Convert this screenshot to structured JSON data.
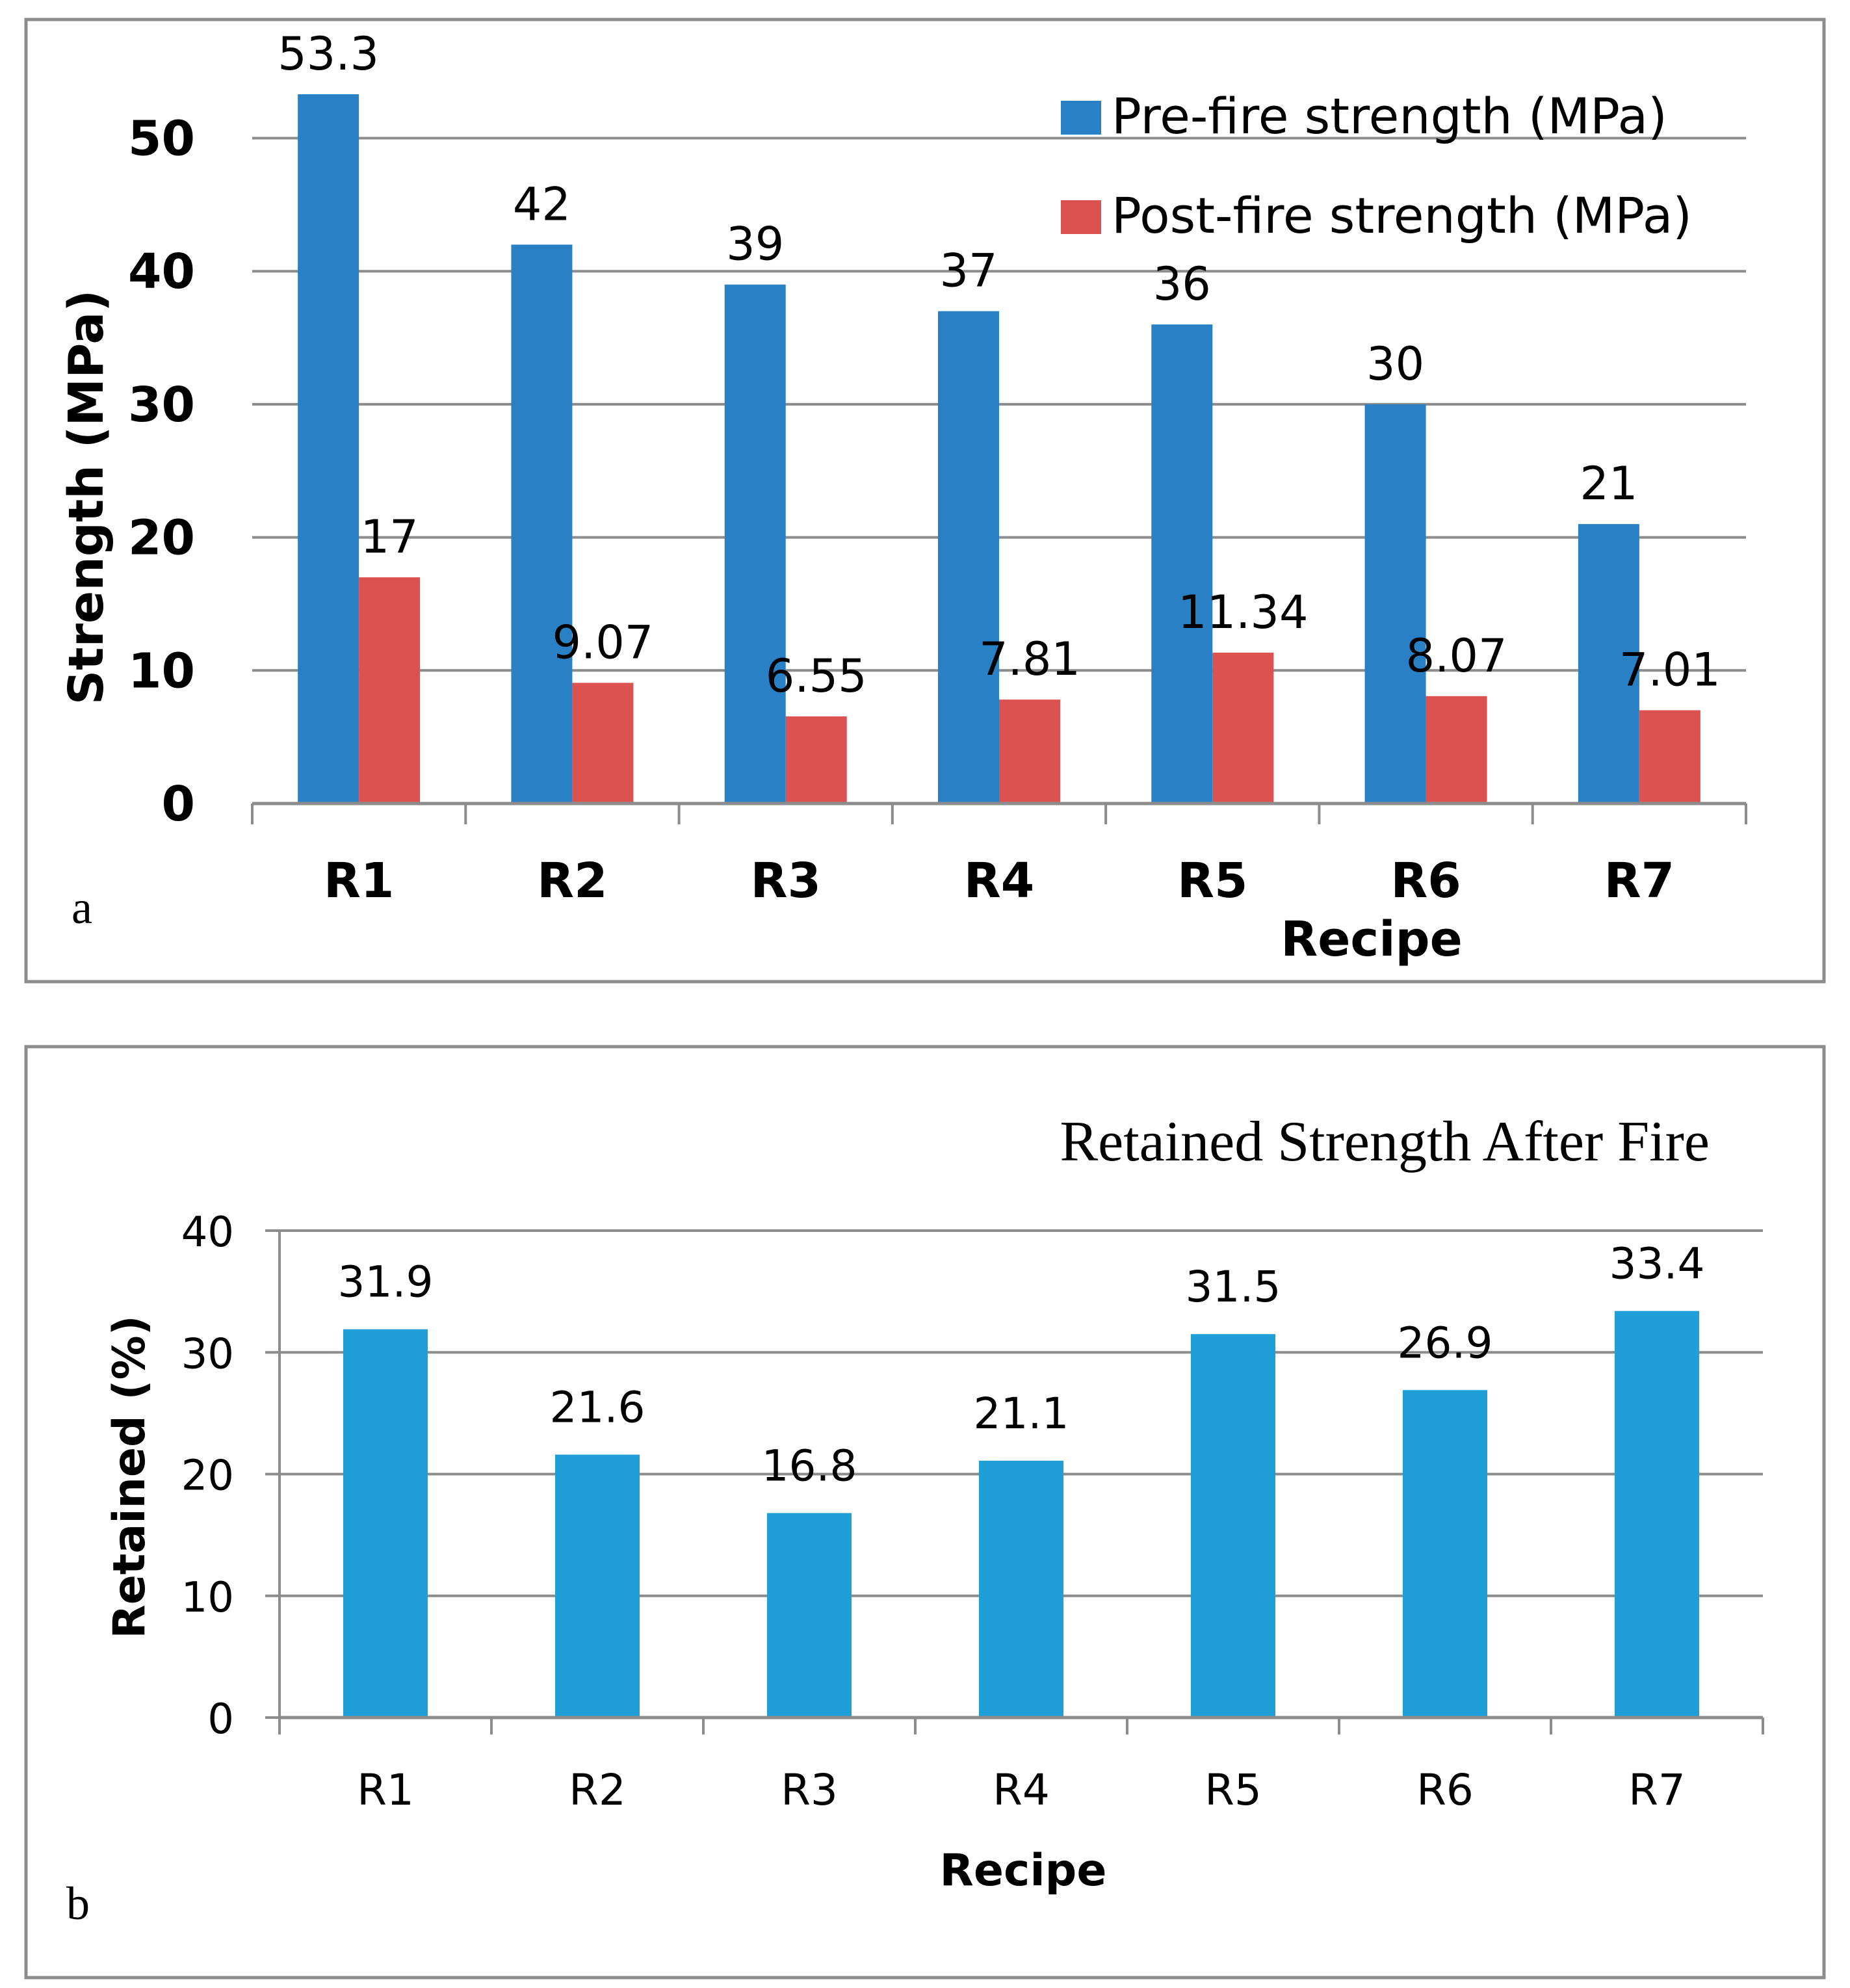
{
  "colors": {
    "pre_fire": "#2980C4",
    "post_fire": "#DC5250",
    "retained": "#1F9ED8",
    "gridline": "#8C8C8C",
    "frame": "#8C8C8C",
    "text": "#000000"
  },
  "chart_data": [
    {
      "type": "bar",
      "panel_label": "a",
      "title": "",
      "xlabel": "Recipe",
      "ylabel": "Strength (MPa)",
      "categories": [
        "R1",
        "R2",
        "R3",
        "R4",
        "R5",
        "R6",
        "R7"
      ],
      "ylim": [
        0,
        53.3
      ],
      "yticks": [
        "0",
        "10",
        "20",
        "30",
        "40",
        "50"
      ],
      "grid": true,
      "legend_position": "top-right",
      "series": [
        {
          "name": "Pre-fire strength (MPa)",
          "values": [
            53.3,
            42,
            39,
            37,
            36,
            30,
            21
          ],
          "labels": [
            "53.3",
            "42",
            "39",
            "37",
            "36",
            "30",
            "21"
          ]
        },
        {
          "name": "Post-fire strength (MPa)",
          "values": [
            17,
            9.07,
            6.55,
            7.81,
            11.34,
            8.07,
            7.01
          ],
          "labels": [
            "17",
            "9.07",
            "6.55",
            "7.81",
            "11.34",
            "8.07",
            "7.01"
          ]
        }
      ]
    },
    {
      "type": "bar",
      "panel_label": "b",
      "title": "Retained Strength After Fire",
      "xlabel": "Recipe",
      "ylabel": "Retained (%)",
      "categories": [
        "R1",
        "R2",
        "R3",
        "R4",
        "R5",
        "R6",
        "R7"
      ],
      "ylim": [
        0,
        40
      ],
      "yticks": [
        "0",
        "10",
        "20",
        "30",
        "40"
      ],
      "grid": true,
      "series": [
        {
          "name": "Retained (%)",
          "values": [
            31.9,
            21.6,
            16.8,
            21.1,
            31.5,
            26.9,
            33.4
          ],
          "labels": [
            "31.9",
            "21.6",
            "16.8",
            "21.1",
            "31.5",
            "26.9",
            "33.4"
          ]
        }
      ]
    }
  ]
}
